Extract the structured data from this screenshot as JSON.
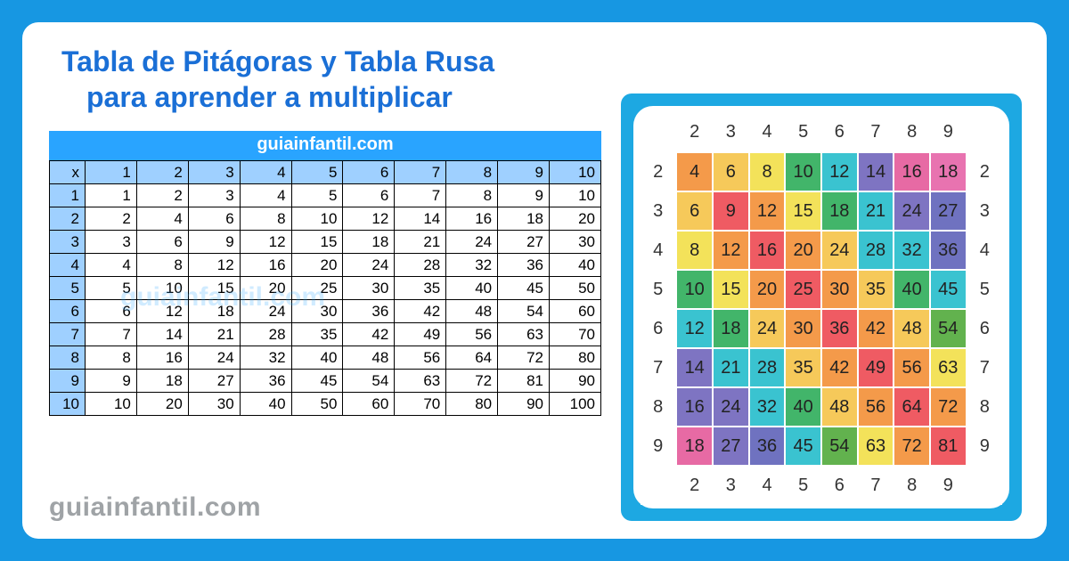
{
  "frame": {
    "bg": "#1797e2",
    "panel_bg": "#ffffff"
  },
  "title": {
    "line1": "Tabla de Pitágoras y Tabla Rusa",
    "line2": "para aprender a multiplicar",
    "color": "#1a6fd6",
    "fontsize": 32
  },
  "brand": "guiainfantil.com",
  "pythagoras": {
    "banner_text": "guiainfantil.com",
    "banner_bg": "#29a4ff",
    "header_bg": "#9fd0ff",
    "border_color": "#000000",
    "corner_label": "x",
    "range": [
      1,
      2,
      3,
      4,
      5,
      6,
      7,
      8,
      9,
      10
    ],
    "rows": [
      [
        1,
        2,
        3,
        4,
        5,
        6,
        7,
        8,
        9,
        10
      ],
      [
        2,
        4,
        6,
        8,
        10,
        12,
        14,
        16,
        18,
        20
      ],
      [
        3,
        6,
        9,
        12,
        15,
        18,
        21,
        24,
        27,
        30
      ],
      [
        4,
        8,
        12,
        16,
        20,
        24,
        28,
        32,
        36,
        40
      ],
      [
        5,
        10,
        15,
        20,
        25,
        30,
        35,
        40,
        45,
        50
      ],
      [
        6,
        12,
        18,
        24,
        30,
        36,
        42,
        48,
        54,
        60
      ],
      [
        7,
        14,
        21,
        28,
        35,
        42,
        49,
        56,
        63,
        70
      ],
      [
        8,
        16,
        24,
        32,
        40,
        48,
        56,
        64,
        72,
        80
      ],
      [
        9,
        18,
        27,
        36,
        45,
        54,
        63,
        72,
        81,
        90
      ],
      [
        10,
        20,
        30,
        40,
        50,
        60,
        70,
        80,
        90,
        100
      ]
    ],
    "watermark_text": "guiainfantil.com"
  },
  "russa": {
    "card_bg": "#1da8e2",
    "inner_bg": "#ffffff",
    "labels": [
      2,
      3,
      4,
      5,
      6,
      7,
      8,
      9
    ],
    "values": [
      [
        4,
        6,
        8,
        10,
        12,
        14,
        16,
        18
      ],
      [
        6,
        9,
        12,
        15,
        18,
        21,
        24,
        27
      ],
      [
        8,
        12,
        16,
        20,
        24,
        28,
        32,
        36
      ],
      [
        10,
        15,
        20,
        25,
        30,
        35,
        40,
        45
      ],
      [
        12,
        18,
        24,
        30,
        36,
        42,
        48,
        54
      ],
      [
        14,
        21,
        28,
        35,
        42,
        49,
        56,
        63
      ],
      [
        16,
        24,
        32,
        40,
        48,
        56,
        64,
        72
      ],
      [
        18,
        27,
        36,
        45,
        54,
        63,
        72,
        81
      ]
    ],
    "colors": [
      [
        "#f49a4a",
        "#f6c95a",
        "#f3e25a",
        "#42b56a",
        "#3ac3d0",
        "#7e74c2",
        "#e76aa4",
        "#e873b0"
      ],
      [
        "#f6c95a",
        "#ef5b63",
        "#f49a4a",
        "#f3e25a",
        "#42b56a",
        "#3ac3d0",
        "#7e74c2",
        "#6f72c0"
      ],
      [
        "#f3e25a",
        "#f49a4a",
        "#ef5b63",
        "#f49a4a",
        "#f6c95a",
        "#3ac3d0",
        "#3ac3d0",
        "#6f72c0"
      ],
      [
        "#42b56a",
        "#f3e25a",
        "#f49a4a",
        "#ef5b63",
        "#f49a4a",
        "#f6c95a",
        "#42b56a",
        "#3ac3d0"
      ],
      [
        "#3ac3d0",
        "#42b56a",
        "#f6c95a",
        "#f49a4a",
        "#ef5b63",
        "#f49a4a",
        "#f6c95a",
        "#62b24e"
      ],
      [
        "#7e74c2",
        "#3ac3d0",
        "#3ac3d0",
        "#f6c95a",
        "#f49a4a",
        "#ef5b63",
        "#f49a4a",
        "#f3e25a"
      ],
      [
        "#7e74c2",
        "#7e74c2",
        "#3ac3d0",
        "#42b56a",
        "#f6c95a",
        "#f49a4a",
        "#ef5b63",
        "#f49a4a"
      ],
      [
        "#e76aa4",
        "#7e74c2",
        "#6f72c0",
        "#3ac3d0",
        "#62b24e",
        "#f3e25a",
        "#f49a4a",
        "#ef5b63"
      ]
    ]
  }
}
